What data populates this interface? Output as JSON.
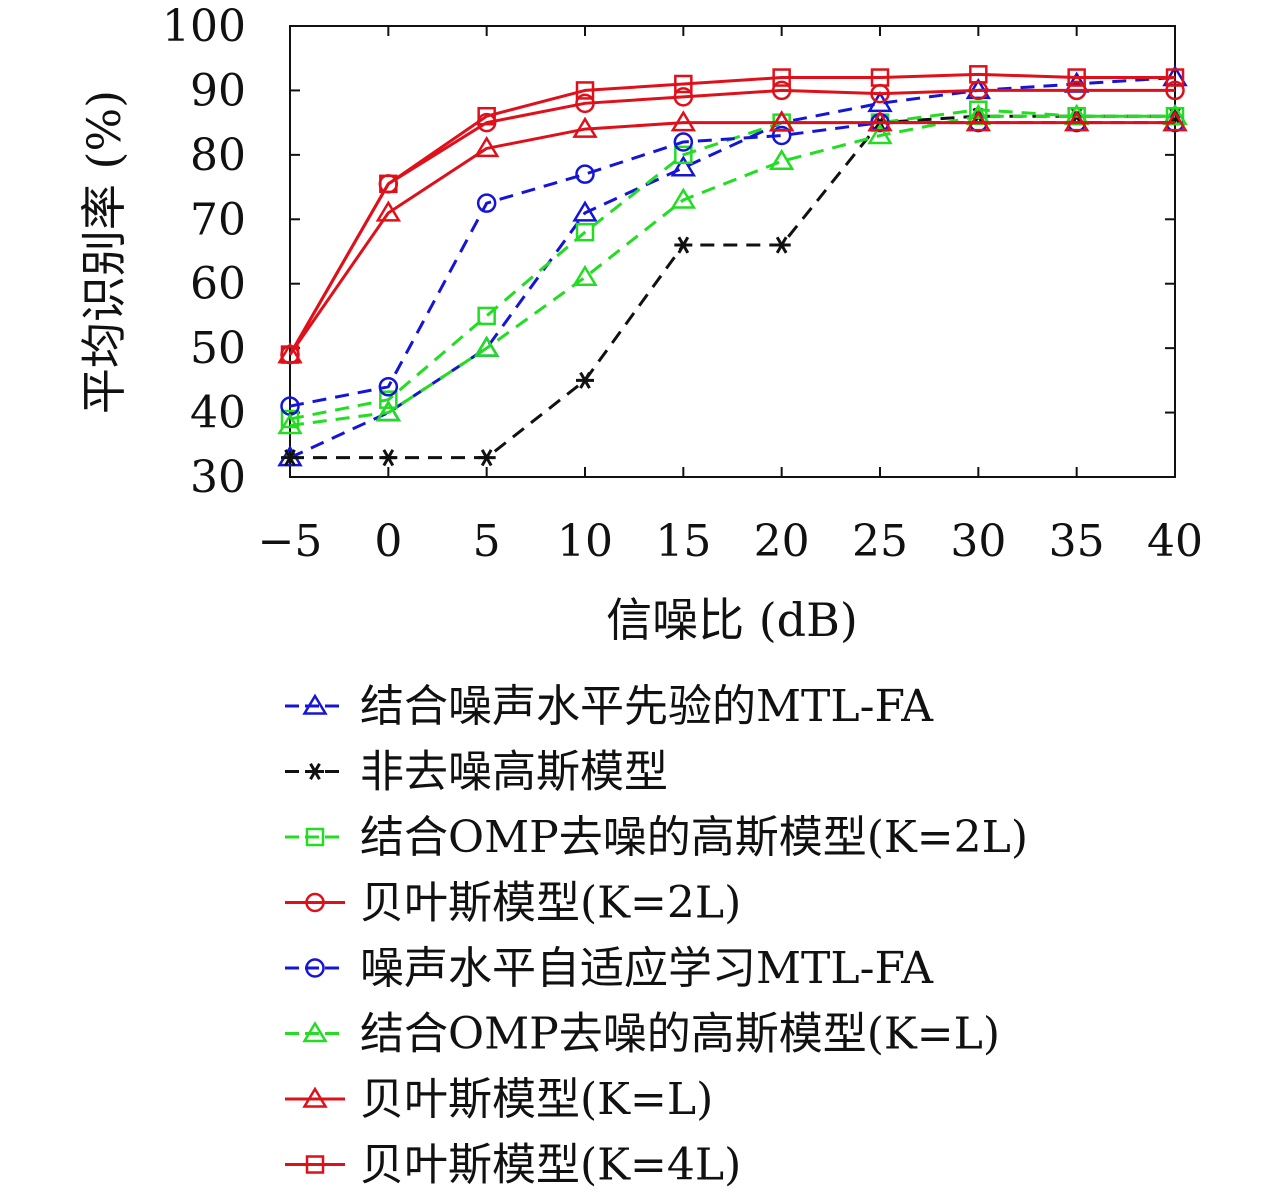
{
  "chart_data": {
    "type": "line",
    "xlabel": "信噪比 (dB)",
    "ylabel": "平均识别率 (%)",
    "xlim": [
      -5,
      40
    ],
    "ylim": [
      30,
      100
    ],
    "x_ticks": [
      -5,
      0,
      5,
      10,
      15,
      20,
      25,
      30,
      35,
      40
    ],
    "x_tick_labels": [
      "−5",
      "0",
      "5",
      "10",
      "15",
      "20",
      "25",
      "30",
      "35",
      "40"
    ],
    "y_ticks": [
      30,
      40,
      50,
      60,
      70,
      80,
      90,
      100
    ],
    "y_tick_labels": [
      "30",
      "40",
      "50",
      "60",
      "70",
      "80",
      "90",
      "100"
    ],
    "grid": false,
    "legend_position": "below",
    "x": [
      -5,
      0,
      5,
      10,
      15,
      20,
      25,
      30,
      35,
      40
    ],
    "series": [
      {
        "name": "结合噪声水平先验的MTL-FA",
        "color": "#1515d6",
        "dash": "dashed",
        "marker": "triangle",
        "values": [
          33,
          40,
          50,
          71,
          78,
          85,
          88,
          90,
          91,
          92
        ]
      },
      {
        "name": "非去噪高斯模型",
        "color": "#111111",
        "dash": "dashed",
        "marker": "asterisk",
        "values": [
          33,
          33,
          33,
          45,
          66,
          66,
          85,
          86,
          86,
          86
        ]
      },
      {
        "name": "结合OMP去噪的高斯模型(K=2L)",
        "color": "#22dd22",
        "dash": "dashed",
        "marker": "square",
        "values": [
          39,
          42,
          55,
          68,
          80,
          85,
          85,
          87,
          86,
          86
        ]
      },
      {
        "name": "贝叶斯模型(K=2L)",
        "color": "#e0101a",
        "dash": "solid",
        "marker": "circle",
        "values": [
          49,
          75.5,
          85,
          88,
          89,
          90,
          89.5,
          90,
          90,
          90
        ]
      },
      {
        "name": "噪声水平自适应学习MTL-FA",
        "color": "#1515d6",
        "dash": "dashed",
        "marker": "circle",
        "values": [
          41,
          44,
          72.5,
          77,
          82,
          83,
          85,
          85,
          85,
          85
        ]
      },
      {
        "name": "结合OMP去噪的高斯模型(K=L)",
        "color": "#22dd22",
        "dash": "dashed",
        "marker": "triangle",
        "values": [
          38,
          40,
          50,
          61,
          73,
          79,
          83,
          86,
          86,
          86
        ]
      },
      {
        "name": "贝叶斯模型(K=L)",
        "color": "#e0101a",
        "dash": "solid",
        "marker": "triangle",
        "values": [
          49,
          71,
          81,
          84,
          85,
          85,
          85,
          85,
          85,
          85
        ]
      },
      {
        "name": "贝叶斯模型(K=4L)",
        "color": "#e0101a",
        "dash": "solid",
        "marker": "square",
        "values": [
          49,
          75.5,
          86,
          90,
          91,
          92,
          92,
          92.5,
          92,
          92
        ]
      }
    ]
  }
}
